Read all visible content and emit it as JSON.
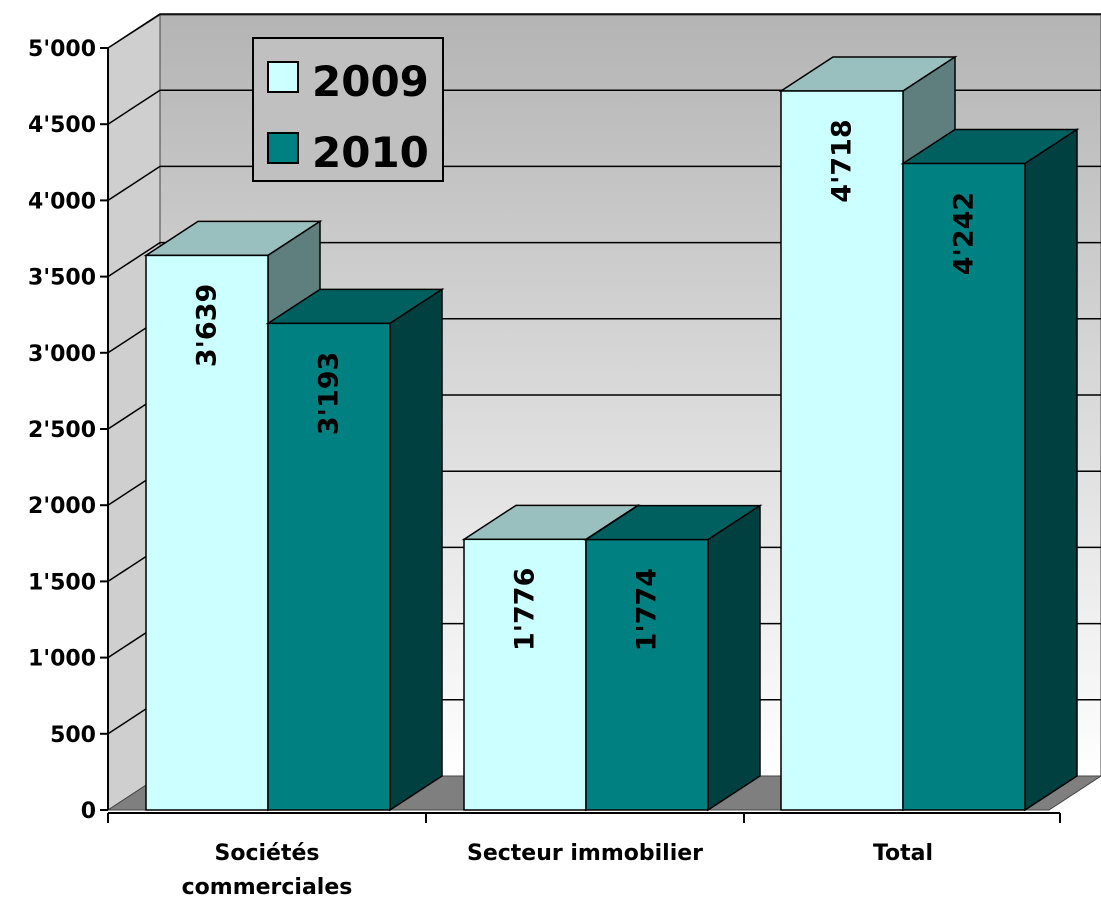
{
  "chart_data": {
    "type": "bar",
    "title": "",
    "xlabel": "",
    "ylabel": "",
    "categories": [
      [
        "Sociétés",
        "commerciales"
      ],
      [
        "Secteur immobilier"
      ],
      [
        "Total"
      ]
    ],
    "series": [
      {
        "name": "2009",
        "values": [
          3639,
          1776,
          4718
        ],
        "labels": [
          "3'639",
          "1'776",
          "4'718"
        ],
        "color": "#ccffff"
      },
      {
        "name": "2010",
        "values": [
          3193,
          1774,
          4242
        ],
        "labels": [
          "3'193",
          "1'774",
          "4'242"
        ],
        "color": "#008080"
      }
    ],
    "y_ticks": [
      {
        "value": 0,
        "label": "0"
      },
      {
        "value": 500,
        "label": "500"
      },
      {
        "value": 1000,
        "label": "1'000"
      },
      {
        "value": 1500,
        "label": "1'500"
      },
      {
        "value": 2000,
        "label": "2'000"
      },
      {
        "value": 2500,
        "label": "2'500"
      },
      {
        "value": 3000,
        "label": "3'000"
      },
      {
        "value": 3500,
        "label": "3'500"
      },
      {
        "value": 4000,
        "label": "4'000"
      },
      {
        "value": 4500,
        "label": "4'500"
      },
      {
        "value": 5000,
        "label": "5'000"
      }
    ],
    "ylim": [
      0,
      5000
    ],
    "grid": true,
    "legend_position": "top-left",
    "three_d": true
  }
}
